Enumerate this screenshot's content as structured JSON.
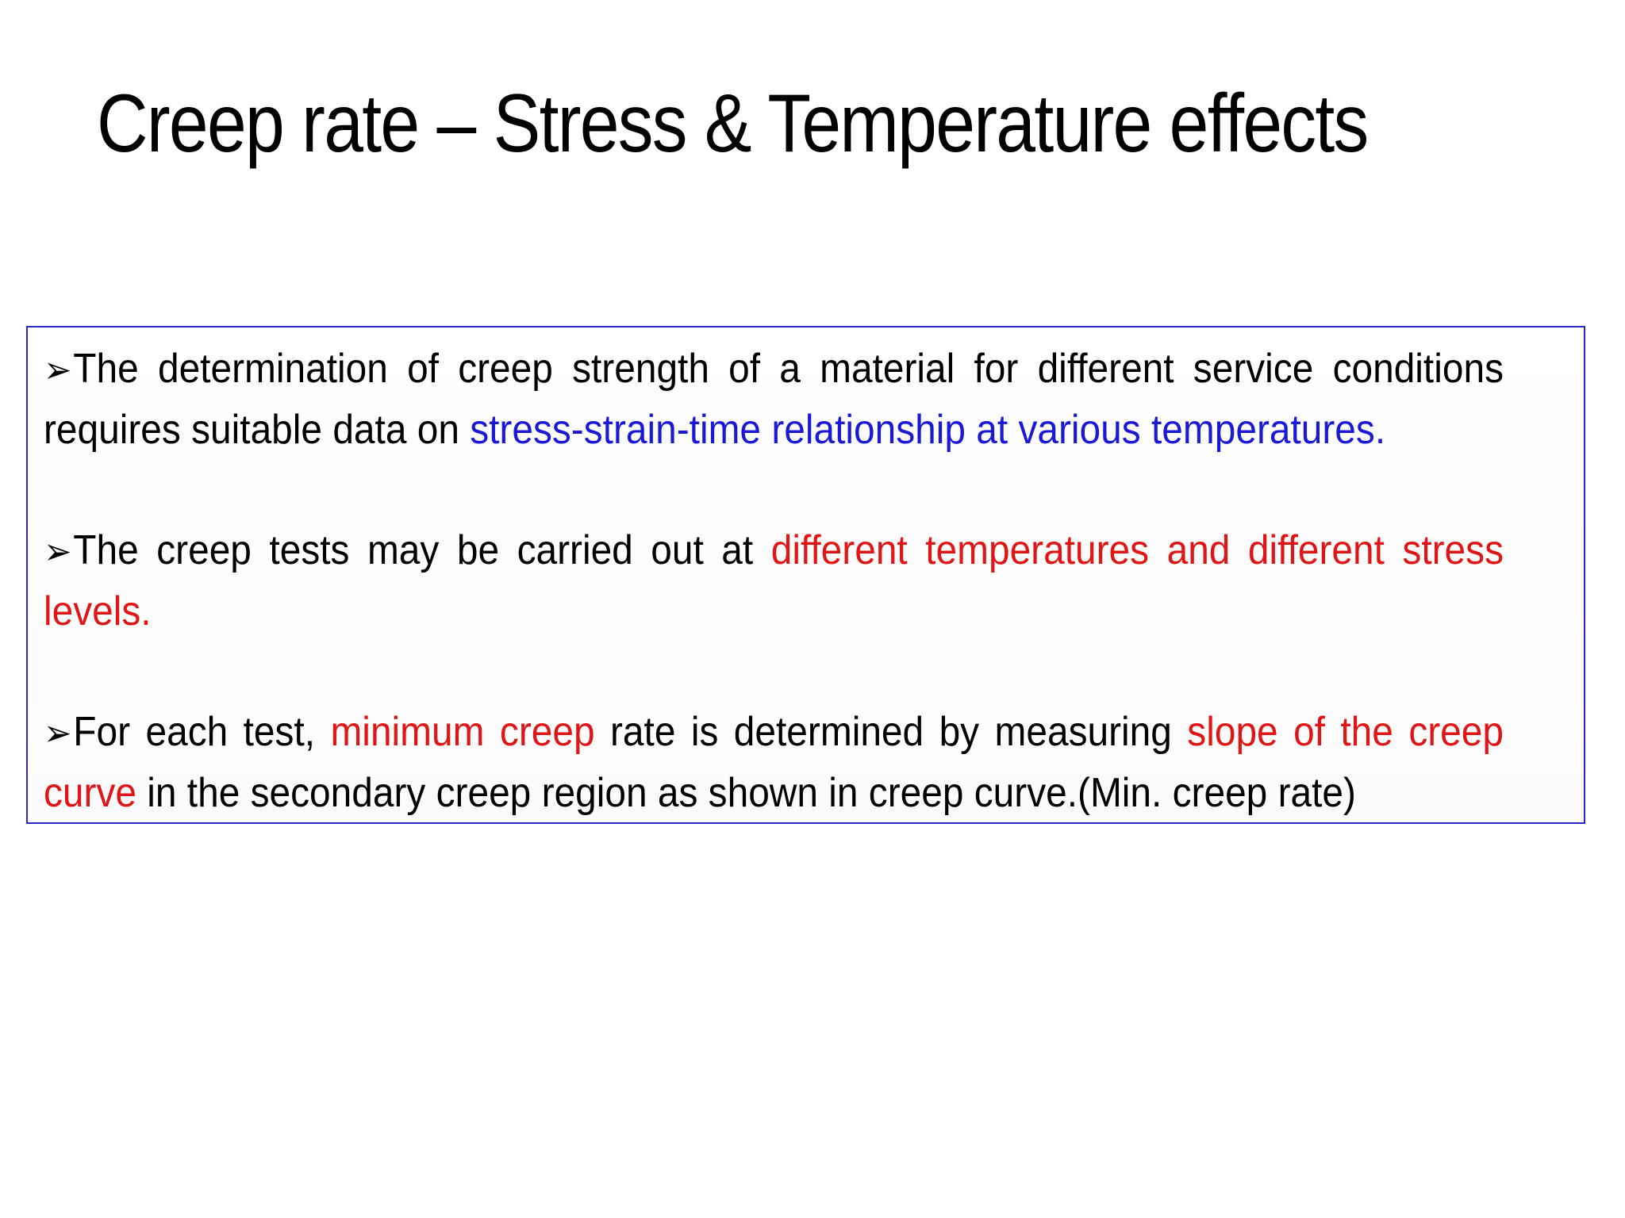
{
  "slide": {
    "title": "Creep rate – Stress & Temperature effects"
  },
  "bullet_icon": "arrow-bullet-icon",
  "colors": {
    "border": "#2a2ac8",
    "highlight_blue": "#1a1ad6",
    "highlight_red": "#e01515",
    "text": "#000000"
  },
  "bullets": [
    {
      "segments": [
        {
          "text": "The determination of creep strength of a material for different service conditions requires suitable data on ",
          "style": "normal"
        },
        {
          "text": "stress-strain-time relationship at various temperatures.",
          "style": "blue"
        }
      ]
    },
    {
      "segments": [
        {
          "text": "The creep tests may be carried out at ",
          "style": "normal"
        },
        {
          "text": "different temperatures and different stress levels.",
          "style": "red"
        }
      ]
    },
    {
      "segments": [
        {
          "text": "For each test, ",
          "style": "normal"
        },
        {
          "text": "minimum creep",
          "style": "red"
        },
        {
          "text": " rate is determined by measuring ",
          "style": "normal"
        },
        {
          "text": "slope of the creep curve",
          "style": "red"
        },
        {
          "text": " in the secondary creep region as shown in creep curve.(Min. creep rate)",
          "style": "normal"
        }
      ]
    }
  ]
}
